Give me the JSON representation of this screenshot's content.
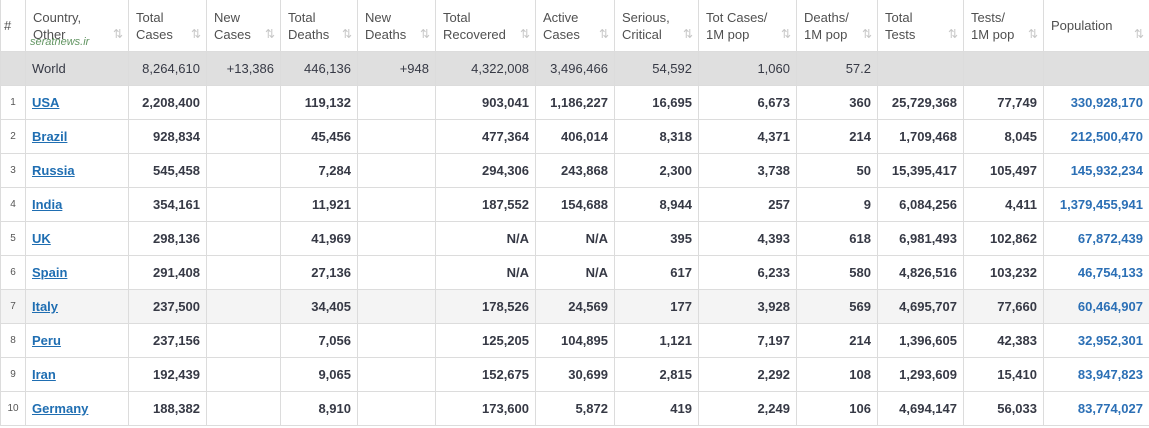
{
  "watermark": "seratnews.ir",
  "table": {
    "header": [
      "#",
      "Country, Other",
      "Total Cases",
      "New Cases",
      "Total Deaths",
      "New Deaths",
      "Total Recovered",
      "Active Cases",
      "Serious, Critical",
      "Tot Cases/ 1M pop",
      "Deaths/ 1M pop",
      "Total Tests",
      "Tests/ 1M pop",
      "Population"
    ],
    "rows": [
      [
        null,
        "World",
        "8,264,610",
        "+13,386",
        "446,136",
        "+948",
        "4,322,008",
        "3,496,466",
        "54,592",
        "1,060",
        "57.2",
        null,
        null,
        null
      ],
      [
        "1",
        "USA",
        "2,208,400",
        null,
        "119,132",
        null,
        "903,041",
        "1,186,227",
        "16,695",
        "6,673",
        "360",
        "25,729,368",
        "77,749",
        "330,928,170"
      ],
      [
        "2",
        "Brazil",
        "928,834",
        null,
        "45,456",
        null,
        "477,364",
        "406,014",
        "8,318",
        "4,371",
        "214",
        "1,709,468",
        "8,045",
        "212,500,470"
      ],
      [
        "3",
        "Russia",
        "545,458",
        null,
        "7,284",
        null,
        "294,306",
        "243,868",
        "2,300",
        "3,738",
        "50",
        "15,395,417",
        "105,497",
        "145,932,234"
      ],
      [
        "4",
        "India",
        "354,161",
        null,
        "11,921",
        null,
        "187,552",
        "154,688",
        "8,944",
        "257",
        "9",
        "6,084,256",
        "4,411",
        "1,379,455,941"
      ],
      [
        "5",
        "UK",
        "298,136",
        null,
        "41,969",
        null,
        "N/A",
        "N/A",
        "395",
        "4,393",
        "618",
        "6,981,493",
        "102,862",
        "67,872,439"
      ],
      [
        "6",
        "Spain",
        "291,408",
        null,
        "27,136",
        null,
        "N/A",
        "N/A",
        "617",
        "6,233",
        "580",
        "4,826,516",
        "103,232",
        "46,754,133"
      ],
      [
        "7",
        "Italy",
        "237,500",
        null,
        "34,405",
        null,
        "178,526",
        "24,569",
        "177",
        "3,928",
        "569",
        "4,695,707",
        "77,660",
        "60,464,907"
      ],
      [
        "8",
        "Peru",
        "237,156",
        null,
        "7,056",
        null,
        "125,205",
        "104,895",
        "1,121",
        "7,197",
        "214",
        "1,396,605",
        "42,383",
        "32,952,301"
      ],
      [
        "9",
        "Iran",
        "192,439",
        null,
        "9,065",
        null,
        "152,675",
        "30,699",
        "2,815",
        "2,292",
        "108",
        "1,293,609",
        "15,410",
        "83,947,823"
      ],
      [
        "10",
        "Germany",
        "188,382",
        null,
        "8,910",
        null,
        "173,600",
        "5,872",
        "419",
        "2,249",
        "106",
        "4,694,147",
        "56,033",
        "83,774,027"
      ]
    ]
  }
}
